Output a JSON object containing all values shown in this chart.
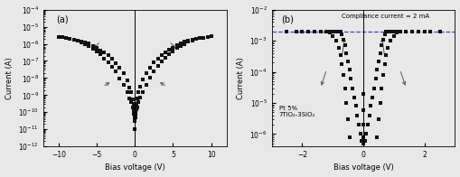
{
  "panel_a": {
    "label": "(a)",
    "ylim": [
      1e-12,
      0.0001
    ],
    "xlim": [
      -12,
      12
    ],
    "xticks": [
      -10,
      -5,
      0,
      5,
      10
    ],
    "xlabel": "Bias voltage (V)",
    "ylabel": "Current (A)",
    "vline_x": 0
  },
  "panel_b": {
    "label": "(b)",
    "ylim": [
      4e-07,
      0.01
    ],
    "xlim": [
      -3.0,
      3.0
    ],
    "xticks": [
      -2,
      0,
      2
    ],
    "xlabel": "Bias voltage (V)",
    "ylabel": "Current (A)",
    "vline_x": 0,
    "compliance_current": 0.002,
    "compliance_label": "Compliance current = 2 mA",
    "sample_label": "Pt 5%\n7TiO₂-3SiO₂"
  },
  "dot_color": "#111111",
  "marker_size": 2.2,
  "bg_color": "#e8e8e8"
}
